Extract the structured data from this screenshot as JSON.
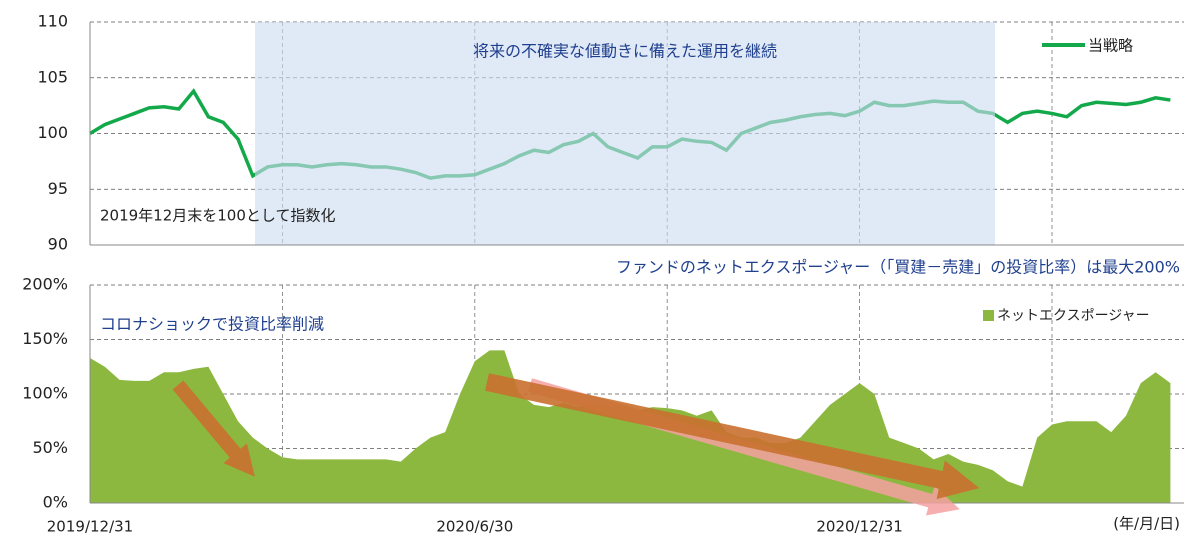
{
  "chart_data": [
    {
      "type": "line",
      "annotation": "将来の不確実な値動きに備えた運用を継続",
      "note": "2019年12月末を100として指数化",
      "series": [
        {
          "name": "当戦略",
          "color": "#13a94a",
          "values": [
            100,
            100.8,
            101.3,
            101.8,
            102.3,
            102.4,
            102.2,
            103.8,
            101.5,
            101,
            99.5,
            96.2,
            97,
            97.2,
            97.2,
            97,
            97.2,
            97.3,
            97.2,
            97,
            97,
            96.8,
            96.5,
            96,
            96.2,
            96.2,
            96.3,
            96.8,
            97.3,
            98,
            98.5,
            98.3,
            99,
            99.3,
            100,
            98.8,
            98.3,
            97.8,
            98.8,
            98.8,
            99.5,
            99.3,
            99.2,
            98.5,
            100,
            100.5,
            101,
            101.2,
            101.5,
            101.7,
            101.8,
            101.6,
            102,
            102.8,
            102.5,
            102.5,
            102.7,
            102.9,
            102.8,
            102.8,
            102,
            101.8,
            101,
            101.8,
            102,
            101.8,
            101.5,
            102.5,
            102.8,
            102.7,
            102.6,
            102.8,
            103.2,
            103
          ]
        }
      ],
      "ylim": [
        90,
        110
      ],
      "yticks": [
        90,
        95,
        100,
        105,
        110
      ],
      "grid": true
    },
    {
      "type": "area",
      "subtitle": "ファンドのネットエクスポージャー（「買建－売建」の投資比率）は最大200%",
      "annotation": "コロナショックで投資比率削減",
      "x_unit": "(年/月/日)",
      "categories": [
        "2019/12/31",
        null,
        null,
        null,
        null,
        null,
        null,
        null,
        null,
        null,
        null,
        null,
        null,
        null,
        null,
        null,
        null,
        null,
        null,
        null,
        null,
        null,
        null,
        null,
        null,
        null,
        "2020/6/30",
        null,
        null,
        null,
        null,
        null,
        null,
        null,
        null,
        null,
        null,
        null,
        null,
        null,
        null,
        null,
        null,
        null,
        null,
        null,
        null,
        null,
        null,
        null,
        null,
        null,
        "2020/12/31",
        null,
        null,
        null,
        null,
        null,
        null,
        null,
        null,
        null,
        null,
        null,
        null,
        null,
        null,
        null,
        null,
        null,
        null,
        null,
        null,
        null
      ],
      "series": [
        {
          "name": "ネットエクスポージャー",
          "color": "#8db83f",
          "values": [
            133,
            125,
            113,
            112,
            112,
            120,
            120,
            123,
            125,
            100,
            75,
            60,
            50,
            42,
            40,
            40,
            40,
            40,
            40,
            40,
            40,
            38,
            50,
            60,
            65,
            100,
            130,
            140,
            140,
            100,
            90,
            88,
            92,
            88,
            92,
            88,
            90,
            85,
            88,
            87,
            85,
            80,
            85,
            65,
            60,
            60,
            55,
            55,
            60,
            75,
            90,
            100,
            110,
            100,
            60,
            55,
            50,
            40,
            45,
            38,
            35,
            30,
            20,
            15,
            60,
            72,
            75,
            75,
            75,
            65,
            80,
            110,
            120,
            110
          ]
        }
      ],
      "ylim": [
        0,
        200
      ],
      "yticks": [
        {
          "value": 0,
          "label": "0%"
        },
        {
          "value": 50,
          "label": "50%"
        },
        {
          "value": 100,
          "label": "100%"
        },
        {
          "value": 150,
          "label": "150%"
        },
        {
          "value": 200,
          "label": "200%"
        }
      ],
      "grid": true
    }
  ]
}
